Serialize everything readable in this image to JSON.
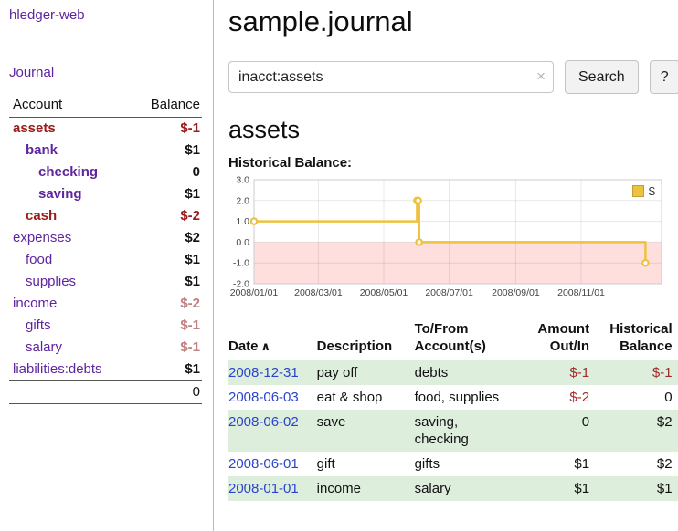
{
  "colors": {
    "accent_purple": "#5f259f",
    "negative_strong": "#9b1b1b",
    "negative_muted": "#c08181",
    "link_blue": "#2a44cc",
    "row_green": "#ddeedd",
    "chart_line": "#edc240",
    "chart_negative_region": "#ffdede"
  },
  "sidebar": {
    "app_title": "hledger-web",
    "journal_label": "Journal",
    "accounts": {
      "header_account": "Account",
      "header_balance": "Balance",
      "rows": [
        {
          "indent": 0,
          "name": "assets",
          "balance": "$-1",
          "bold": true,
          "name_neg": true,
          "bal_neg": true
        },
        {
          "indent": 1,
          "name": "bank",
          "balance": "$1",
          "bold": true,
          "name_neg": false,
          "bal_neg": false
        },
        {
          "indent": 2,
          "name": "checking",
          "balance": "0",
          "bold": true,
          "name_neg": false,
          "bal_neg": false
        },
        {
          "indent": 2,
          "name": "saving",
          "balance": "$1",
          "bold": true,
          "name_neg": false,
          "bal_neg": false
        },
        {
          "indent": 1,
          "name": "cash",
          "balance": "$-2",
          "bold": true,
          "name_neg": true,
          "bal_neg": true
        },
        {
          "indent": 0,
          "name": "expenses",
          "balance": "$2",
          "bold": false,
          "name_neg": false,
          "bal_neg": false
        },
        {
          "indent": 1,
          "name": "food",
          "balance": "$1",
          "bold": false,
          "name_neg": false,
          "bal_neg": false
        },
        {
          "indent": 1,
          "name": "supplies",
          "balance": "$1",
          "bold": false,
          "name_neg": false,
          "bal_neg": false
        },
        {
          "indent": 0,
          "name": "income",
          "balance": "$-2",
          "bold": false,
          "name_neg": false,
          "bal_neg": true
        },
        {
          "indent": 1,
          "name": "gifts",
          "balance": "$-1",
          "bold": false,
          "name_neg": false,
          "bal_neg": true
        },
        {
          "indent": 1,
          "name": "salary",
          "balance": "$-1",
          "bold": false,
          "name_neg": false,
          "bal_neg": true
        },
        {
          "indent": 0,
          "name": "liabilities:debts",
          "balance": "$1",
          "bold": false,
          "name_neg": false,
          "bal_neg": false
        }
      ],
      "total": "0"
    }
  },
  "main": {
    "title": "sample.journal",
    "search": {
      "value": "inacct:assets",
      "clear_icon": "×",
      "button_label": "Search",
      "help_label": "?"
    },
    "account_heading": "assets"
  },
  "chart_data": {
    "type": "line",
    "title": "Historical Balance:",
    "legend": "$",
    "series": [
      {
        "name": "$",
        "step": true,
        "points": [
          [
            "2008-01-01",
            1
          ],
          [
            "2008-06-01",
            2
          ],
          [
            "2008-06-02",
            2
          ],
          [
            "2008-06-03",
            0
          ],
          [
            "2008-12-31",
            -1
          ]
        ]
      }
    ],
    "ylim": [
      -2,
      3
    ],
    "yticks": [
      "3.0",
      "2.0",
      "1.0",
      "0.0",
      "-1.0",
      "-2.0"
    ],
    "xticks": [
      "2008/01/01",
      "2008/03/01",
      "2008/05/01",
      "2008/07/01",
      "2008/09/01",
      "2008/11/01"
    ],
    "x_start": "2008-01-01",
    "x_span_days": 380,
    "grid": true,
    "legend_position": "top-right",
    "line_color": "#edc240",
    "negative_region_color": "#ffdede"
  },
  "register": {
    "headers": {
      "date": "Date",
      "sort_indicator": "∧",
      "description": "Description",
      "accounts": "To/From Account(s)",
      "amount": "Amount Out/In",
      "balance": "Historical Balance"
    },
    "rows": [
      {
        "date": "2008-12-31",
        "description": "pay off",
        "accounts": "debts",
        "amount": "$-1",
        "amount_neg": true,
        "balance": "$-1",
        "balance_neg": true,
        "shaded": true
      },
      {
        "date": "2008-06-03",
        "description": "eat & shop",
        "accounts": "food, supplies",
        "amount": "$-2",
        "amount_neg": true,
        "balance": "0",
        "balance_neg": false,
        "shaded": false
      },
      {
        "date": "2008-06-02",
        "description": "save",
        "accounts": "saving, checking",
        "amount": "0",
        "amount_neg": false,
        "balance": "$2",
        "balance_neg": false,
        "shaded": true
      },
      {
        "date": "2008-06-01",
        "description": "gift",
        "accounts": "gifts",
        "amount": "$1",
        "amount_neg": false,
        "balance": "$2",
        "balance_neg": false,
        "shaded": false
      },
      {
        "date": "2008-01-01",
        "description": "income",
        "accounts": "salary",
        "amount": "$1",
        "amount_neg": false,
        "balance": "$1",
        "balance_neg": false,
        "shaded": true
      }
    ]
  }
}
